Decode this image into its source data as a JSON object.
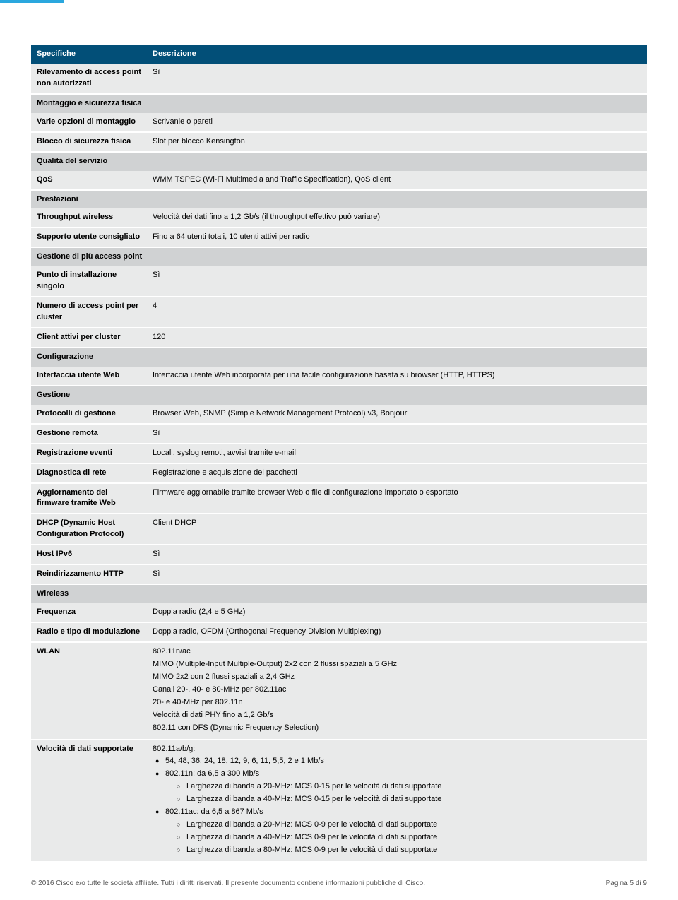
{
  "colors": {
    "header_bg": "#024f78",
    "section_bg": "#d0d2d3",
    "row_bg": "#e9eaea",
    "accent": "#2aa7de"
  },
  "head": {
    "spec": "Specifiche",
    "desc": "Descrizione"
  },
  "rows": {
    "r1_label": "Rilevamento di access point non autorizzati",
    "r1_val": "Sì",
    "sec_mount": "Montaggio e sicurezza fisica",
    "r2_label": "Varie opzioni di montaggio",
    "r2_val": "Scrivanie o pareti",
    "r3_label": "Blocco di sicurezza fisica",
    "r3_val": "Slot per blocco Kensington",
    "sec_qos": "Qualità del servizio",
    "r4_label": "QoS",
    "r4_val": "WMM TSPEC (Wi-Fi Multimedia and Traffic Specification), QoS client",
    "sec_perf": "Prestazioni",
    "r5_label": "Throughput wireless",
    "r5_val": "Velocità dei dati fino a 1,2 Gb/s (il throughput effettivo può variare)",
    "r6_label": "Supporto utente consigliato",
    "r6_val": "Fino a 64 utenti totali, 10 utenti attivi per radio",
    "sec_multi": "Gestione di più access point",
    "r7_label": "Punto di installazione singolo",
    "r7_val": "Sì",
    "r8_label": "Numero di access point per cluster",
    "r8_val": "4",
    "r9_label": "Client attivi per cluster",
    "r9_val": "120",
    "sec_conf": "Configurazione",
    "r10_label": "Interfaccia utente Web",
    "r10_val": "Interfaccia utente Web incorporata per una facile configurazione basata su browser (HTTP, HTTPS)",
    "sec_mgmt": "Gestione",
    "r11_label": "Protocolli di gestione",
    "r11_val": "Browser Web, SNMP (Simple Network Management Protocol) v3, Bonjour",
    "r12_label": "Gestione remota",
    "r12_val": "Sì",
    "r13_label": "Registrazione eventi",
    "r13_val": "Locali, syslog remoti, avvisi tramite e-mail",
    "r14_label": "Diagnostica di rete",
    "r14_val": "Registrazione e acquisizione dei pacchetti",
    "r15_label": "Aggiornamento del firmware tramite Web",
    "r15_val": "Firmware aggiornabile tramite browser Web o file di configurazione importato o esportato",
    "r16_label": "DHCP (Dynamic Host Configuration Protocol)",
    "r16_val": "Client DHCP",
    "r17_label": "Host IPv6",
    "r17_val": "Sì",
    "r18_label": "Reindirizzamento HTTP",
    "r18_val": "Sì",
    "sec_wireless": "Wireless",
    "r19_label": "Frequenza",
    "r19_val": "Doppia radio (2,4 e 5 GHz)",
    "r20_label": "Radio e tipo di modulazione",
    "r20_val": "Doppia radio, OFDM (Orthogonal Frequency Division Multiplexing)",
    "r21_label": "WLAN",
    "wlan_lines": [
      "802.11n/ac",
      "MIMO (Multiple-Input Multiple-Output) 2x2 con 2 flussi spaziali a 5 GHz",
      "MIMO 2x2 con 2 flussi spaziali a 2,4 GHz",
      "Canali 20-, 40- e 80-MHz per 802.11ac",
      "20- e 40-MHz per 802.11n",
      "Velocità di dati PHY fino a 1,2 Gb/s",
      "802.11 con DFS (Dynamic Frequency Selection)"
    ],
    "r22_label": "Velocità di dati supportate",
    "r22_head": "802.11a/b/g:",
    "r22_b1": "54, 48, 36, 24, 18, 12, 9, 6, 11, 5,5, 2 e 1 Mb/s",
    "r22_b2": "802.11n: da 6,5 a 300 Mb/s",
    "r22_b2_s1": "Larghezza di banda a 20-MHz: MCS 0-15 per le velocità di dati supportate",
    "r22_b2_s2": "Larghezza di banda a 40-MHz: MCS 0-15 per le velocità di dati supportate",
    "r22_b3": "802.11ac: da 6,5 a 867 Mb/s",
    "r22_b3_s1": "Larghezza di banda a 20-MHz: MCS 0-9 per le velocità di dati supportate",
    "r22_b3_s2": "Larghezza di banda a 40-MHz: MCS 0-9 per le velocità di dati supportate",
    "r22_b3_s3": "Larghezza di banda a 80-MHz: MCS 0-9 per le velocità di dati supportate"
  },
  "footer": {
    "left": "© 2016 Cisco e/o tutte le società affiliate. Tutti i diritti riservati. Il presente documento contiene informazioni pubbliche di Cisco.",
    "right": "Pagina 5 di 9"
  }
}
